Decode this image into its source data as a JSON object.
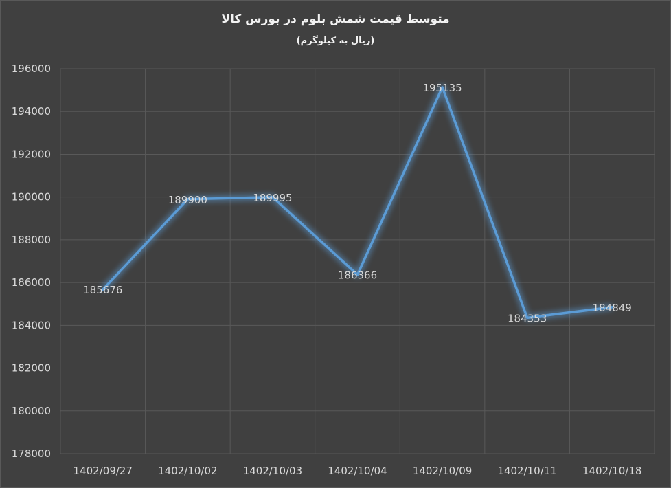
{
  "chart_data": {
    "type": "line",
    "title": "متوسط قیمت شمش بلوم در بورس کالا",
    "subtitle": "(ریال به کیلوگرم)",
    "categories": [
      "1402/09/27",
      "1402/10/02",
      "1402/10/03",
      "1402/10/04",
      "1402/10/09",
      "1402/10/11",
      "1402/10/18"
    ],
    "series": [
      {
        "values": [
          185676,
          189900,
          189995,
          186366,
          195135,
          184353,
          184849
        ]
      }
    ],
    "ylim": [
      178000,
      196000
    ],
    "yticks": [
      196000,
      194000,
      192000,
      190000,
      188000,
      186000,
      184000,
      182000,
      180000,
      178000
    ],
    "grid": true,
    "colors": {
      "line": "#5b9bd5",
      "glow": "#5b9bd5",
      "grid": "#595959",
      "background": "#404040"
    }
  }
}
